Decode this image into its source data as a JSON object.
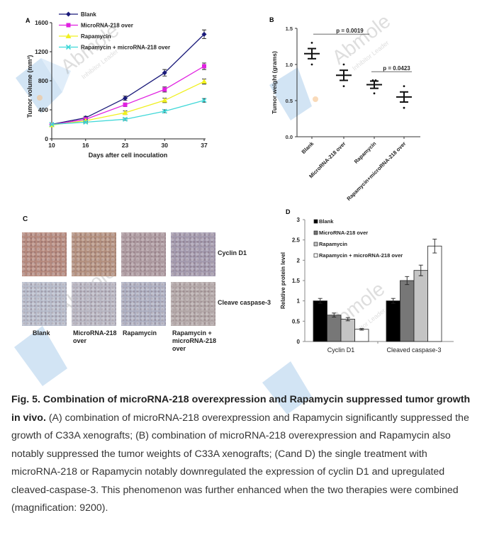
{
  "chart_data": [
    {
      "panel": "A",
      "type": "line",
      "title": "",
      "xlabel": "Days after cell inoculation",
      "ylabel": "Tumor volume (mm³)",
      "x": [
        10,
        16,
        23,
        30,
        37
      ],
      "xticks": [
        "10",
        "16",
        "23",
        "30",
        "37"
      ],
      "yticks": [
        "0",
        "400",
        "800",
        "1200",
        "1600"
      ],
      "ylim": [
        0,
        1600
      ],
      "legend_position": "top-left",
      "series": [
        {
          "name": "Blank",
          "color": "#1a1a7a",
          "marker": "diamond",
          "values": [
            200,
            290,
            560,
            910,
            1440
          ],
          "errors": [
            15,
            20,
            30,
            45,
            60
          ]
        },
        {
          "name": "MicroRNA-218 over",
          "color": "#e020e0",
          "marker": "square",
          "values": [
            195,
            270,
            470,
            680,
            1000
          ],
          "errors": [
            12,
            18,
            25,
            35,
            45
          ]
        },
        {
          "name": "Rapamycin",
          "color": "#f0f020",
          "marker": "triangle",
          "values": [
            190,
            250,
            360,
            530,
            790
          ],
          "errors": [
            12,
            15,
            25,
            30,
            35
          ]
        },
        {
          "name": "Rapamycin + microRNA-218 over",
          "color": "#40d8d8",
          "marker": "x",
          "values": [
            200,
            230,
            270,
            380,
            530
          ],
          "errors": [
            10,
            12,
            15,
            20,
            25
          ]
        }
      ]
    },
    {
      "panel": "B",
      "type": "scatter",
      "ylabel": "Tumor weight (grams)",
      "categories": [
        "Blank",
        "MicroRNA-218 over",
        "Rapamycin",
        "Rapamycin+microRNA-218 over"
      ],
      "yticks": [
        "0.0",
        "0.5",
        "1.0",
        "1.5"
      ],
      "ylim": [
        0,
        1.5
      ],
      "means": [
        1.15,
        0.85,
        0.72,
        0.55
      ],
      "errors": [
        0.07,
        0.07,
        0.05,
        0.07
      ],
      "points": [
        [
          1.3,
          1.0
        ],
        [
          1.0,
          0.7
        ],
        [
          0.78,
          0.78,
          0.6
        ],
        [
          0.7,
          0.4
        ]
      ],
      "annotations": [
        {
          "text": "p = 0.0019",
          "from": 0,
          "to": 2,
          "y": 1.42
        },
        {
          "text": "p = 0.0423",
          "from": 2,
          "to": 3,
          "y": 0.9
        }
      ]
    },
    {
      "panel": "D",
      "type": "bar",
      "ylabel": "Relative protein level",
      "categories": [
        "Cyclin D1",
        "Cleaved caspase-3"
      ],
      "yticks": [
        "0",
        "0.5",
        "1",
        "1.5",
        "2",
        "2.5",
        "3"
      ],
      "ylim": [
        0,
        3
      ],
      "legend_position": "top-left",
      "series": [
        {
          "name": "Blank",
          "color": "#000000",
          "values": [
            1.0,
            1.0
          ],
          "errors": [
            0.06,
            0.06
          ]
        },
        {
          "name": "MicroRNA-218 over",
          "color": "#777777",
          "values": [
            0.65,
            1.5
          ],
          "errors": [
            0.05,
            0.1
          ]
        },
        {
          "name": "Rapamycin",
          "color": "#c4c4c4",
          "values": [
            0.55,
            1.75
          ],
          "errors": [
            0.04,
            0.13
          ]
        },
        {
          "name": "Rapamycin + microRNA-218 over",
          "color": "#ffffff",
          "values": [
            0.3,
            2.35
          ],
          "errors": [
            0.02,
            0.17
          ]
        }
      ]
    }
  ],
  "panels": {
    "A": "A",
    "B": "B",
    "C": "C",
    "D": "D"
  },
  "panel_c": {
    "row_labels": [
      "Cyclin D1",
      "Cleave caspase-3"
    ],
    "column_labels": [
      "Blank",
      "MicroRNA-218 over",
      "Rapamycin",
      "Rapamycin + microRNA-218 over"
    ],
    "column_labels_wrapped": [
      [
        "Blank"
      ],
      [
        "MicroRNA-218",
        "over"
      ],
      [
        "Rapamycin"
      ],
      [
        "Rapamycin +",
        "microRNA-218",
        "over"
      ]
    ]
  },
  "watermark": {
    "brand": "Abmole",
    "tagline": "Inhibitor Leader"
  },
  "caption": {
    "title": "Fig. 5. Combination of microRNA-218 overexpression and Rapamycin suppressed tumor growth in vivo.",
    "body": " (A) combination of microRNA-218 overexpression and Rapamycin significantly suppressed the growth of C33A xenografts; (B) combination of microRNA-218 overexpression and Rapamycin also notably suppressed the tumor weights of C33A xenografts; (Cand D) the single treatment with microRNA-218 or Rapamycin notably downregulated the expression of cyclin D1 and upregulated cleaved-caspase-3. This phenomenon was further enhanced when the two therapies were combined (magnification: 9200)."
  }
}
